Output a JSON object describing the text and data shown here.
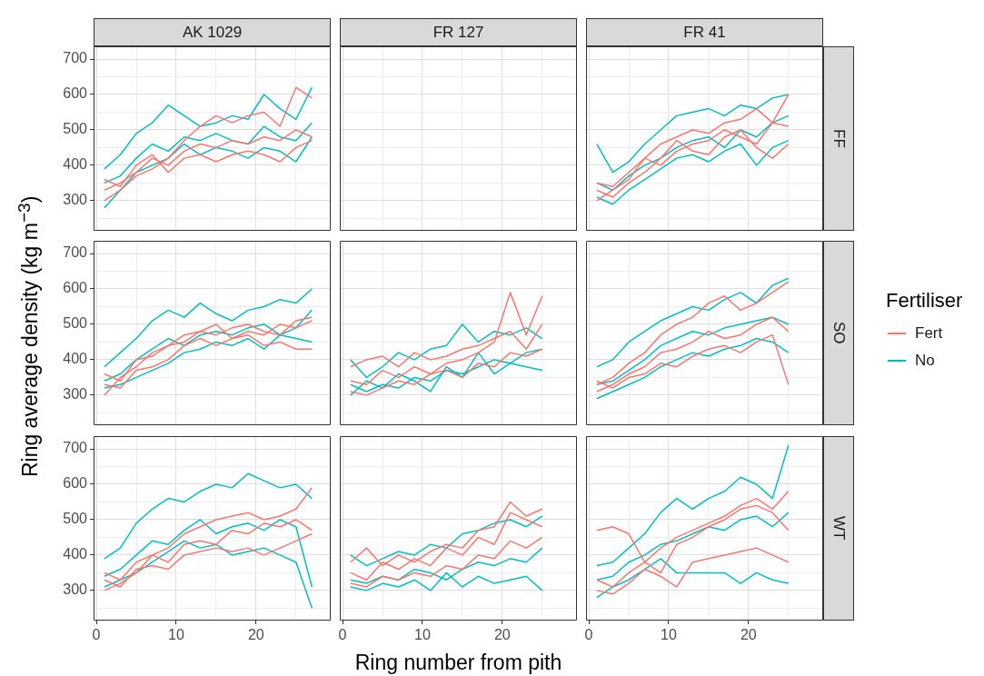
{
  "chart_data": [
    {
      "type": "line",
      "title": "AK 1029",
      "x": [
        1,
        3,
        5,
        7,
        9,
        11,
        13,
        15,
        17,
        19,
        21,
        23,
        25,
        27
      ],
      "xlim": [
        -0.35,
        29.35
      ],
      "ylim": [
        215,
        736
      ],
      "xticks": [
        0,
        {
          "value": 5,
          "label": null
        },
        10,
        {
          "value": 15,
          "label": null
        },
        20,
        {
          "value": 25,
          "label": null
        }
      ],
      "yticks": [
        {
          "value": 250,
          "label": null
        },
        300,
        {
          "value": 350,
          "label": null
        },
        400,
        {
          "value": 450,
          "label": null
        },
        500,
        {
          "value": 550,
          "label": null
        },
        600,
        {
          "value": 650,
          "label": null
        },
        700
      ],
      "grid": true,
      "tick_labels": "y",
      "series": [
        {
          "color": "#f8766d",
          "values": [
            330,
            350,
            380,
            420,
            400,
            440,
            460,
            450,
            470,
            460,
            480,
            470,
            500,
            480
          ]
        },
        {
          "color": "#f8766d",
          "values": [
            300,
            330,
            370,
            390,
            420,
            470,
            510,
            540,
            520,
            540,
            550,
            510,
            620,
            590
          ]
        },
        {
          "color": "#f8766d",
          "values": [
            360,
            340,
            400,
            430,
            380,
            420,
            430,
            410,
            430,
            440,
            430,
            410,
            450,
            470
          ]
        },
        {
          "color": "#00bfc4",
          "values": [
            390,
            430,
            490,
            520,
            570,
            540,
            510,
            520,
            540,
            530,
            600,
            560,
            530,
            620
          ]
        },
        {
          "color": "#00bfc4",
          "values": [
            350,
            370,
            420,
            460,
            440,
            480,
            470,
            490,
            470,
            460,
            510,
            480,
            470,
            520
          ]
        },
        {
          "color": "#00bfc4",
          "values": [
            280,
            330,
            380,
            400,
            420,
            460,
            430,
            450,
            440,
            420,
            450,
            440,
            410,
            480
          ]
        }
      ]
    },
    {
      "type": "line",
      "title": "FR 127",
      "xlim": [
        -0.35,
        29.35
      ],
      "ylim": [
        215,
        736
      ],
      "xticks": [
        0,
        {
          "value": 5,
          "label": null
        },
        10,
        {
          "value": 15,
          "label": null
        },
        20,
        {
          "value": 25,
          "label": null
        }
      ],
      "yticks": [
        {
          "value": 250,
          "label": null
        },
        300,
        {
          "value": 350,
          "label": null
        },
        400,
        {
          "value": 450,
          "label": null
        },
        500,
        {
          "value": 550,
          "label": null
        },
        600,
        {
          "value": 650,
          "label": null
        },
        700
      ],
      "grid": true,
      "tick_labels": false
    },
    {
      "type": "line",
      "title": "FR 41",
      "y2label": "FF",
      "x": [
        1,
        3,
        5,
        7,
        9,
        11,
        13,
        15,
        17,
        19,
        21,
        23,
        25
      ],
      "xlim": [
        -0.35,
        29.35
      ],
      "ylim": [
        215,
        736
      ],
      "xticks": [
        0,
        {
          "value": 5,
          "label": null
        },
        10,
        {
          "value": 15,
          "label": null
        },
        20,
        {
          "value": 25,
          "label": null
        }
      ],
      "yticks": [
        {
          "value": 250,
          "label": null
        },
        300,
        {
          "value": 350,
          "label": null
        },
        400,
        {
          "value": 450,
          "label": null
        },
        500,
        {
          "value": 550,
          "label": null
        },
        600,
        {
          "value": 650,
          "label": null
        },
        700
      ],
      "grid": true,
      "tick_labels": false,
      "series": [
        {
          "color": "#f8766d",
          "values": [
            300,
            330,
            360,
            420,
            460,
            480,
            500,
            490,
            520,
            530,
            560,
            520,
            510
          ]
        },
        {
          "color": "#f8766d",
          "values": [
            350,
            340,
            380,
            420,
            400,
            440,
            460,
            470,
            500,
            480,
            460,
            520,
            600
          ]
        },
        {
          "color": "#f8766d",
          "values": [
            330,
            310,
            350,
            380,
            420,
            470,
            440,
            430,
            480,
            500,
            450,
            420,
            460
          ]
        },
        {
          "color": "#00bfc4",
          "values": [
            460,
            380,
            410,
            460,
            500,
            540,
            550,
            560,
            540,
            570,
            560,
            590,
            600
          ]
        },
        {
          "color": "#00bfc4",
          "values": [
            350,
            330,
            370,
            400,
            420,
            450,
            470,
            480,
            450,
            500,
            480,
            520,
            540
          ]
        },
        {
          "color": "#00bfc4",
          "values": [
            310,
            290,
            330,
            360,
            390,
            420,
            430,
            410,
            440,
            460,
            400,
            450,
            470
          ]
        }
      ]
    },
    {
      "type": "line",
      "ylabel": "Ring average density (kg m$^{−3}$)",
      "x": [
        1,
        3,
        5,
        7,
        9,
        11,
        13,
        15,
        17,
        19,
        21,
        23,
        25,
        27
      ],
      "xlim": [
        -0.35,
        29.35
      ],
      "ylim": [
        215,
        736
      ],
      "xticks": [
        0,
        {
          "value": 5,
          "label": null
        },
        10,
        {
          "value": 15,
          "label": null
        },
        20,
        {
          "value": 25,
          "label": null
        }
      ],
      "yticks": [
        {
          "value": 250,
          "label": null
        },
        300,
        {
          "value": 350,
          "label": null
        },
        400,
        {
          "value": 450,
          "label": null
        },
        500,
        {
          "value": 550,
          "label": null
        },
        600,
        {
          "value": 650,
          "label": null
        },
        700
      ],
      "grid": true,
      "tick_labels": "y",
      "series": [
        {
          "color": "#f8766d",
          "values": [
            300,
            350,
            380,
            420,
            440,
            450,
            480,
            470,
            490,
            500,
            480,
            470,
            510,
            520
          ]
        },
        {
          "color": "#f8766d",
          "values": [
            360,
            340,
            400,
            410,
            440,
            470,
            480,
            500,
            460,
            480,
            470,
            500,
            490,
            510
          ]
        },
        {
          "color": "#f8766d",
          "values": [
            330,
            320,
            370,
            380,
            400,
            440,
            460,
            440,
            460,
            470,
            440,
            450,
            430,
            430
          ]
        },
        {
          "color": "#00bfc4",
          "values": [
            380,
            420,
            460,
            510,
            540,
            520,
            560,
            530,
            510,
            540,
            550,
            570,
            560,
            600
          ]
        },
        {
          "color": "#00bfc4",
          "values": [
            340,
            360,
            400,
            430,
            460,
            440,
            470,
            480,
            470,
            490,
            500,
            470,
            490,
            540
          ]
        },
        {
          "color": "#00bfc4",
          "values": [
            320,
            330,
            350,
            370,
            390,
            420,
            430,
            450,
            440,
            460,
            430,
            470,
            460,
            450
          ]
        }
      ]
    },
    {
      "type": "line",
      "x": [
        1,
        3,
        5,
        7,
        9,
        11,
        13,
        15,
        17,
        19,
        21,
        23,
        25
      ],
      "xlim": [
        -0.35,
        29.35
      ],
      "ylim": [
        215,
        736
      ],
      "xticks": [
        0,
        {
          "value": 5,
          "label": null
        },
        10,
        {
          "value": 15,
          "label": null
        },
        20,
        {
          "value": 25,
          "label": null
        }
      ],
      "yticks": [
        {
          "value": 250,
          "label": null
        },
        300,
        {
          "value": 350,
          "label": null
        },
        400,
        {
          "value": 450,
          "label": null
        },
        500,
        {
          "value": 550,
          "label": null
        },
        600,
        {
          "value": 650,
          "label": null
        },
        700
      ],
      "grid": true,
      "tick_labels": false,
      "series": [
        {
          "color": "#f8766d",
          "values": [
            340,
            330,
            370,
            350,
            380,
            360,
            390,
            400,
            420,
            450,
            590,
            470,
            580
          ]
        },
        {
          "color": "#f8766d",
          "values": [
            310,
            300,
            320,
            340,
            330,
            360,
            370,
            350,
            390,
            380,
            420,
            410,
            430
          ]
        },
        {
          "color": "#f8766d",
          "values": [
            380,
            400,
            410,
            380,
            420,
            400,
            410,
            430,
            440,
            460,
            480,
            430,
            500
          ]
        },
        {
          "color": "#00bfc4",
          "values": [
            400,
            350,
            380,
            420,
            400,
            430,
            440,
            500,
            450,
            480,
            470,
            490,
            460
          ]
        },
        {
          "color": "#00bfc4",
          "values": [
            330,
            310,
            330,
            320,
            350,
            340,
            370,
            360,
            380,
            400,
            390,
            420,
            430
          ]
        },
        {
          "color": "#00bfc4",
          "values": [
            300,
            340,
            320,
            360,
            340,
            310,
            380,
            350,
            420,
            360,
            390,
            380,
            370
          ]
        }
      ]
    },
    {
      "type": "line",
      "y2label": "SO",
      "legend": "right",
      "legend_title": "Fertiliser",
      "x": [
        1,
        3,
        5,
        7,
        9,
        11,
        13,
        15,
        17,
        19,
        21,
        23,
        25
      ],
      "xlim": [
        -0.35,
        29.35
      ],
      "ylim": [
        215,
        736
      ],
      "xticks": [
        0,
        {
          "value": 5,
          "label": null
        },
        10,
        {
          "value": 15,
          "label": null
        },
        20,
        {
          "value": 25,
          "label": null
        }
      ],
      "yticks": [
        {
          "value": 250,
          "label": null
        },
        300,
        {
          "value": 350,
          "label": null
        },
        400,
        {
          "value": 450,
          "label": null
        },
        500,
        {
          "value": 550,
          "label": null
        },
        600,
        {
          "value": 650,
          "label": null
        },
        700
      ],
      "grid": true,
      "tick_labels": false,
      "series": [
        {
          "name": "Fert",
          "color": "#f8766d",
          "values": [
            330,
            350,
            390,
            420,
            470,
            500,
            520,
            560,
            580,
            540,
            560,
            590,
            620
          ]
        },
        {
          "color": "#f8766d",
          "values": [
            310,
            330,
            360,
            380,
            420,
            430,
            450,
            480,
            460,
            470,
            500,
            520,
            480
          ]
        },
        {
          "color": "#f8766d",
          "values": [
            340,
            320,
            350,
            360,
            390,
            380,
            410,
            430,
            440,
            420,
            450,
            470,
            330
          ]
        },
        {
          "name": "No",
          "color": "#00bfc4",
          "values": [
            380,
            400,
            450,
            480,
            510,
            530,
            550,
            540,
            570,
            590,
            560,
            610,
            630
          ]
        },
        {
          "color": "#00bfc4",
          "values": [
            330,
            340,
            370,
            400,
            440,
            460,
            480,
            470,
            490,
            500,
            510,
            520,
            500
          ]
        },
        {
          "color": "#00bfc4",
          "values": [
            290,
            310,
            330,
            350,
            380,
            400,
            420,
            410,
            430,
            440,
            460,
            450,
            420
          ]
        }
      ]
    },
    {
      "type": "line",
      "x": [
        1,
        3,
        5,
        7,
        9,
        11,
        13,
        15,
        17,
        19,
        21,
        23,
        25,
        27
      ],
      "xlim": [
        -0.35,
        29.35
      ],
      "ylim": [
        215,
        736
      ],
      "xticks": [
        0,
        {
          "value": 5,
          "label": null
        },
        10,
        {
          "value": 15,
          "label": null
        },
        20,
        {
          "value": 25,
          "label": null
        }
      ],
      "yticks": [
        {
          "value": 250,
          "label": null
        },
        300,
        {
          "value": 350,
          "label": null
        },
        400,
        {
          "value": 450,
          "label": null
        },
        500,
        {
          "value": 550,
          "label": null
        },
        600,
        {
          "value": 650,
          "label": null
        },
        700
      ],
      "grid": true,
      "series": [
        {
          "color": "#f8766d",
          "values": [
            300,
            320,
            350,
            400,
            420,
            460,
            480,
            500,
            510,
            520,
            500,
            510,
            530,
            590
          ]
        },
        {
          "color": "#f8766d",
          "values": [
            350,
            330,
            380,
            400,
            380,
            430,
            440,
            430,
            470,
            460,
            490,
            480,
            500,
            470
          ]
        },
        {
          "color": "#f8766d",
          "values": [
            330,
            310,
            360,
            370,
            360,
            400,
            410,
            420,
            410,
            420,
            400,
            420,
            440,
            460
          ]
        },
        {
          "color": "#00bfc4",
          "values": [
            390,
            420,
            490,
            530,
            560,
            550,
            580,
            600,
            590,
            630,
            610,
            590,
            600,
            560
          ]
        },
        {
          "color": "#00bfc4",
          "values": [
            340,
            360,
            400,
            440,
            430,
            470,
            500,
            460,
            480,
            490,
            470,
            500,
            480,
            310
          ]
        },
        {
          "color": "#00bfc4",
          "values": [
            310,
            330,
            350,
            380,
            410,
            440,
            420,
            430,
            400,
            410,
            420,
            400,
            380,
            250
          ]
        }
      ]
    },
    {
      "type": "line",
      "xlabel": "Ring number from pith",
      "x": [
        1,
        3,
        5,
        7,
        9,
        11,
        13,
        15,
        17,
        19,
        21,
        23,
        25
      ],
      "xlim": [
        -0.35,
        29.35
      ],
      "ylim": [
        215,
        736
      ],
      "xticks": [
        0,
        {
          "value": 5,
          "label": null
        },
        10,
        {
          "value": 15,
          "label": null
        },
        20,
        {
          "value": 25,
          "label": null
        }
      ],
      "yticks": [
        {
          "value": 250,
          "label": null
        },
        300,
        {
          "value": 350,
          "label": null
        },
        400,
        {
          "value": 450,
          "label": null
        },
        500,
        {
          "value": 550,
          "label": null
        },
        600,
        {
          "value": 650,
          "label": null
        },
        700
      ],
      "grid": true,
      "tick_labels": "x",
      "series": [
        {
          "color": "#f8766d",
          "values": [
            350,
            330,
            380,
            360,
            390,
            370,
            420,
            400,
            450,
            430,
            520,
            500,
            480
          ]
        },
        {
          "color": "#f8766d",
          "values": [
            320,
            310,
            340,
            330,
            350,
            340,
            370,
            360,
            400,
            390,
            440,
            420,
            450
          ]
        },
        {
          "color": "#f8766d",
          "values": [
            380,
            420,
            370,
            400,
            380,
            410,
            430,
            420,
            470,
            480,
            550,
            510,
            530
          ]
        },
        {
          "color": "#00bfc4",
          "values": [
            400,
            370,
            390,
            410,
            400,
            430,
            420,
            460,
            470,
            490,
            500,
            480,
            510
          ]
        },
        {
          "color": "#00bfc4",
          "values": [
            330,
            320,
            340,
            330,
            360,
            350,
            330,
            360,
            380,
            370,
            390,
            380,
            420
          ]
        },
        {
          "color": "#00bfc4",
          "values": [
            310,
            300,
            320,
            310,
            330,
            300,
            350,
            310,
            340,
            320,
            330,
            340,
            300
          ]
        }
      ]
    },
    {
      "type": "line",
      "y2label": "WT",
      "x": [
        1,
        3,
        5,
        7,
        9,
        11,
        13,
        15,
        17,
        19,
        21,
        23,
        25
      ],
      "xlim": [
        -0.35,
        29.35
      ],
      "ylim": [
        215,
        736
      ],
      "xticks": [
        0,
        {
          "value": 5,
          "label": null
        },
        10,
        {
          "value": 15,
          "label": null
        },
        20,
        {
          "value": 25,
          "label": null
        }
      ],
      "yticks": [
        {
          "value": 250,
          "label": null
        },
        300,
        {
          "value": 350,
          "label": null
        },
        400,
        {
          "value": 450,
          "label": null
        },
        500,
        {
          "value": 550,
          "label": null
        },
        600,
        {
          "value": 650,
          "label": null
        },
        700
      ],
      "grid": true,
      "tick_labels": "x",
      "series": [
        {
          "color": "#f8766d",
          "values": [
            470,
            480,
            460,
            380,
            350,
            430,
            450,
            480,
            500,
            530,
            540,
            520,
            470
          ]
        },
        {
          "color": "#f8766d",
          "values": [
            330,
            310,
            350,
            380,
            420,
            450,
            470,
            490,
            510,
            540,
            560,
            530,
            580
          ]
        },
        {
          "color": "#f8766d",
          "values": [
            300,
            290,
            320,
            360,
            340,
            310,
            380,
            390,
            400,
            410,
            420,
            400,
            380
          ]
        },
        {
          "color": "#00bfc4",
          "values": [
            370,
            380,
            420,
            460,
            520,
            560,
            530,
            560,
            580,
            620,
            600,
            560,
            710
          ]
        },
        {
          "color": "#00bfc4",
          "values": [
            330,
            340,
            380,
            400,
            430,
            440,
            460,
            480,
            470,
            500,
            510,
            480,
            520
          ]
        },
        {
          "color": "#00bfc4",
          "values": [
            280,
            310,
            330,
            360,
            390,
            350,
            350,
            350,
            350,
            320,
            350,
            330,
            320
          ]
        }
      ]
    }
  ]
}
